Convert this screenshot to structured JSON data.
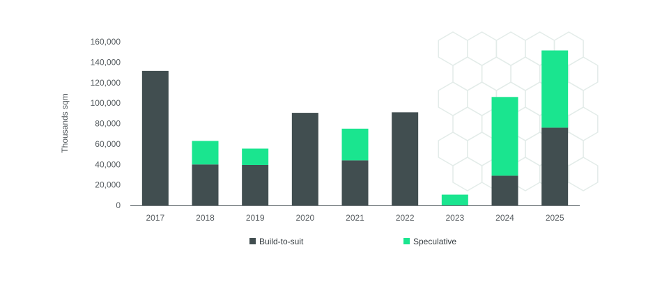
{
  "chart_data": {
    "type": "bar",
    "stacked": true,
    "title": "",
    "xlabel": "",
    "ylabel": "Thousands sqm",
    "categories": [
      "2017",
      "2018",
      "2019",
      "2020",
      "2021",
      "2022",
      "2023",
      "2024",
      "2025"
    ],
    "series": [
      {
        "name": "Build-to-suit",
        "color": "#414e50",
        "values": [
          131500,
          40000,
          39500,
          90500,
          44000,
          91000,
          0,
          29000,
          76000
        ]
      },
      {
        "name": "Speculative",
        "color": "#1ae58f",
        "values": [
          0,
          23000,
          16000,
          0,
          31000,
          0,
          10500,
          77000,
          75500
        ]
      }
    ],
    "ylim": [
      0,
      160000
    ],
    "yticks": [
      "0",
      "20,000",
      "40,000",
      "60,000",
      "80,000",
      "100,000",
      "120,000",
      "140,000",
      "160,000"
    ],
    "grid": false,
    "legend": "bottom",
    "background_pattern": "hexagon-outline"
  }
}
